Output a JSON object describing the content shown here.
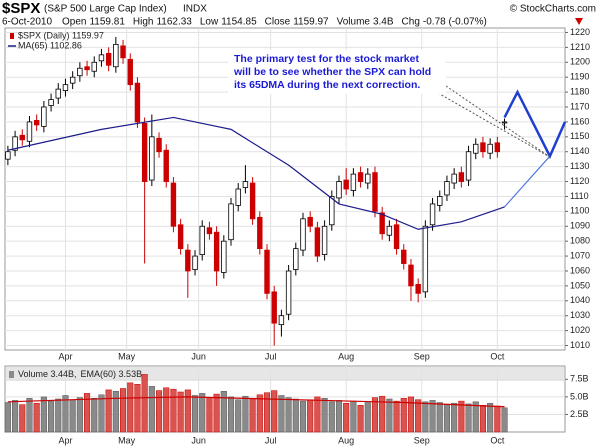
{
  "header": {
    "symbol": "$SPX",
    "name": "(S&P 500 Large Cap Index)",
    "exchange": "INDX",
    "copyright": "© StockCharts.com",
    "date": "6-Oct-2010",
    "fields": [
      {
        "label": "Open",
        "value": "1159.81"
      },
      {
        "label": "High",
        "value": "1162.33"
      },
      {
        "label": "Low",
        "value": "1154.85"
      },
      {
        "label": "Close",
        "value": "1159.97"
      },
      {
        "label": "Volume",
        "value": "3.4B"
      },
      {
        "label": "Chg",
        "value": "-0.78 (-0.07%)"
      }
    ]
  },
  "chart_data": [
    {
      "type": "candlestick",
      "annotation": [
        "The primary test for the stock market",
        "will be to see whether the SPX can hold",
        "its 65DMA during the next correction."
      ],
      "xlim": [
        -0.4,
        77.4
      ],
      "ylim": [
        1007,
        1223
      ],
      "xticks": [
        {
          "value": 8,
          "label": "Apr"
        },
        {
          "value": 16.5,
          "label": "May"
        },
        {
          "value": 26.5,
          "label": "Jun"
        },
        {
          "value": 36.5,
          "label": "Jul"
        },
        {
          "value": 47,
          "label": "Aug"
        },
        {
          "value": 57.5,
          "label": "Sep"
        },
        {
          "value": 68,
          "label": "Oct"
        }
      ],
      "yticks": [
        1010,
        1020,
        1030,
        1040,
        1050,
        1060,
        1070,
        1080,
        1090,
        1100,
        1110,
        1120,
        1130,
        1140,
        1150,
        1160,
        1170,
        1180,
        1190,
        1200,
        1210,
        1220
      ],
      "grid": true,
      "up_color": "#000000",
      "down_color": "#cc0000",
      "series": [
        {
          "name": "$SPX (Daily) 1159.97",
          "open": [
            1135,
            1141,
            1151,
            1147,
            1161,
            1157,
            1171,
            1176,
            1181,
            1186,
            1191,
            1197,
            1194,
            1201,
            1206,
            1197,
            1211,
            1202,
            1186,
            1159,
            1121,
            1149,
            1141,
            1119,
            1091,
            1074,
            1061,
            1071,
            1089,
            1086,
            1059,
            1081,
            1104,
            1116,
            1119,
            1096,
            1074,
            1046,
            1024,
            1031,
            1061,
            1074,
            1096,
            1089,
            1071,
            1091,
            1109,
            1121,
            1114,
            1126,
            1119,
            1126,
            1099,
            1084,
            1091,
            1074,
            1064,
            1051,
            1046,
            1091,
            1104,
            1111,
            1119,
            1126,
            1121,
            1139,
            1146,
            1139,
            1146,
            1159.81
          ],
          "high": [
            1144,
            1154,
            1155,
            1164,
            1165,
            1174,
            1179,
            1186,
            1189,
            1194,
            1200,
            1201,
            1204,
            1209,
            1210,
            1217,
            1215,
            1206,
            1190,
            1163,
            1165,
            1153,
            1145,
            1123,
            1095,
            1078,
            1074,
            1094,
            1093,
            1090,
            1084,
            1109,
            1119,
            1131,
            1123,
            1100,
            1078,
            1050,
            1034,
            1064,
            1079,
            1099,
            1100,
            1093,
            1094,
            1114,
            1124,
            1129,
            1129,
            1130,
            1129,
            1130,
            1103,
            1094,
            1095,
            1078,
            1068,
            1055,
            1094,
            1109,
            1114,
            1124,
            1129,
            1130,
            1144,
            1149,
            1150,
            1149,
            1150,
            1162.33
          ],
          "low": [
            1131,
            1137,
            1144,
            1143,
            1154,
            1153,
            1167,
            1172,
            1177,
            1182,
            1187,
            1191,
            1190,
            1197,
            1194,
            1193,
            1199,
            1181,
            1156,
            1065,
            1117,
            1136,
            1116,
            1086,
            1071,
            1042,
            1057,
            1067,
            1081,
            1050,
            1055,
            1077,
            1100,
            1112,
            1091,
            1071,
            1041,
            1010,
            1016,
            1027,
            1057,
            1070,
            1086,
            1066,
            1067,
            1087,
            1105,
            1111,
            1110,
            1116,
            1115,
            1096,
            1081,
            1080,
            1071,
            1061,
            1040,
            1039,
            1042,
            1087,
            1100,
            1107,
            1115,
            1116,
            1117,
            1135,
            1136,
            1135,
            1136,
            1154.85
          ],
          "close": [
            1140,
            1150,
            1148,
            1160,
            1158,
            1170,
            1175,
            1182,
            1185,
            1190,
            1196,
            1195,
            1200,
            1205,
            1198,
            1212,
            1203,
            1185,
            1160,
            1120,
            1150,
            1140,
            1120,
            1090,
            1075,
            1060,
            1070,
            1090,
            1085,
            1060,
            1080,
            1105,
            1115,
            1120,
            1095,
            1075,
            1045,
            1025,
            1030,
            1060,
            1075,
            1095,
            1090,
            1070,
            1090,
            1110,
            1120,
            1115,
            1125,
            1120,
            1125,
            1100,
            1085,
            1090,
            1075,
            1065,
            1050,
            1045,
            1090,
            1105,
            1110,
            1120,
            1125,
            1120,
            1140,
            1145,
            1140,
            1145,
            1140,
            1159.97
          ]
        },
        {
          "name": "MA(65) 1102.86",
          "color": "#1c1c8a",
          "x": [
            0,
            13,
            23,
            31,
            39,
            46,
            52,
            57,
            63,
            69
          ],
          "values": [
            1141,
            1155,
            1163,
            1155,
            1131,
            1105,
            1098,
            1088,
            1093,
            1103
          ]
        }
      ],
      "ma_projection": {
        "color": "#4f78e0",
        "x": [
          69,
          75.3
        ],
        "values": [
          1103,
          1137
        ]
      },
      "projection": {
        "color": "#1f3fd0",
        "x": [
          69,
          70.8,
          75.3,
          77.4
        ],
        "values": [
          1163,
          1180,
          1137,
          1160
        ]
      }
    },
    {
      "type": "bar",
      "xlim": [
        -0.4,
        77.4
      ],
      "ylim": [
        0,
        9.4
      ],
      "xticks": [
        {
          "value": 8,
          "label": "Apr"
        },
        {
          "value": 16.5,
          "label": "May"
        },
        {
          "value": 26.5,
          "label": "Jun"
        },
        {
          "value": 36.5,
          "label": "Jul"
        },
        {
          "value": 47,
          "label": "Aug"
        },
        {
          "value": 57.5,
          "label": "Sep"
        },
        {
          "value": 68,
          "label": "Oct"
        }
      ],
      "yticks": [
        {
          "value": 2.5,
          "label": "2.5B"
        },
        {
          "value": 5,
          "label": "5.0B"
        },
        {
          "value": 7.5,
          "label": "7.5B"
        }
      ],
      "grid": true,
      "series": [
        {
          "name": "Volume 3.44B,",
          "values": [
            4.2,
            4.5,
            3.9,
            4.8,
            4.1,
            5.0,
            4.4,
            4.7,
            5.2,
            4.6,
            4.9,
            5.5,
            4.8,
            5.3,
            6.0,
            5.8,
            6.2,
            7.0,
            6.8,
            8.2,
            6.5,
            5.9,
            6.3,
            6.1,
            5.7,
            6.0,
            5.2,
            5.5,
            4.9,
            5.4,
            5.8,
            5.0,
            4.6,
            5.1,
            4.8,
            5.3,
            5.6,
            5.9,
            5.2,
            4.9,
            4.7,
            4.4,
            4.6,
            5.0,
            4.8,
            4.3,
            4.5,
            4.1,
            4.4,
            3.8,
            4.2,
            4.9,
            5.1,
            4.7,
            4.4,
            4.8,
            5.0,
            4.6,
            4.3,
            4.5,
            4.2,
            3.9,
            4.1,
            4.4,
            4.0,
            4.3,
            3.8,
            4.1,
            3.7,
            3.44
          ]
        },
        {
          "name": "EMA(60) 3.53B",
          "color": "#cc0000",
          "x": [
            0,
            15,
            25,
            40,
            55,
            69
          ],
          "values": [
            4.3,
            4.8,
            5.0,
            4.6,
            4.2,
            3.6
          ]
        }
      ]
    }
  ]
}
